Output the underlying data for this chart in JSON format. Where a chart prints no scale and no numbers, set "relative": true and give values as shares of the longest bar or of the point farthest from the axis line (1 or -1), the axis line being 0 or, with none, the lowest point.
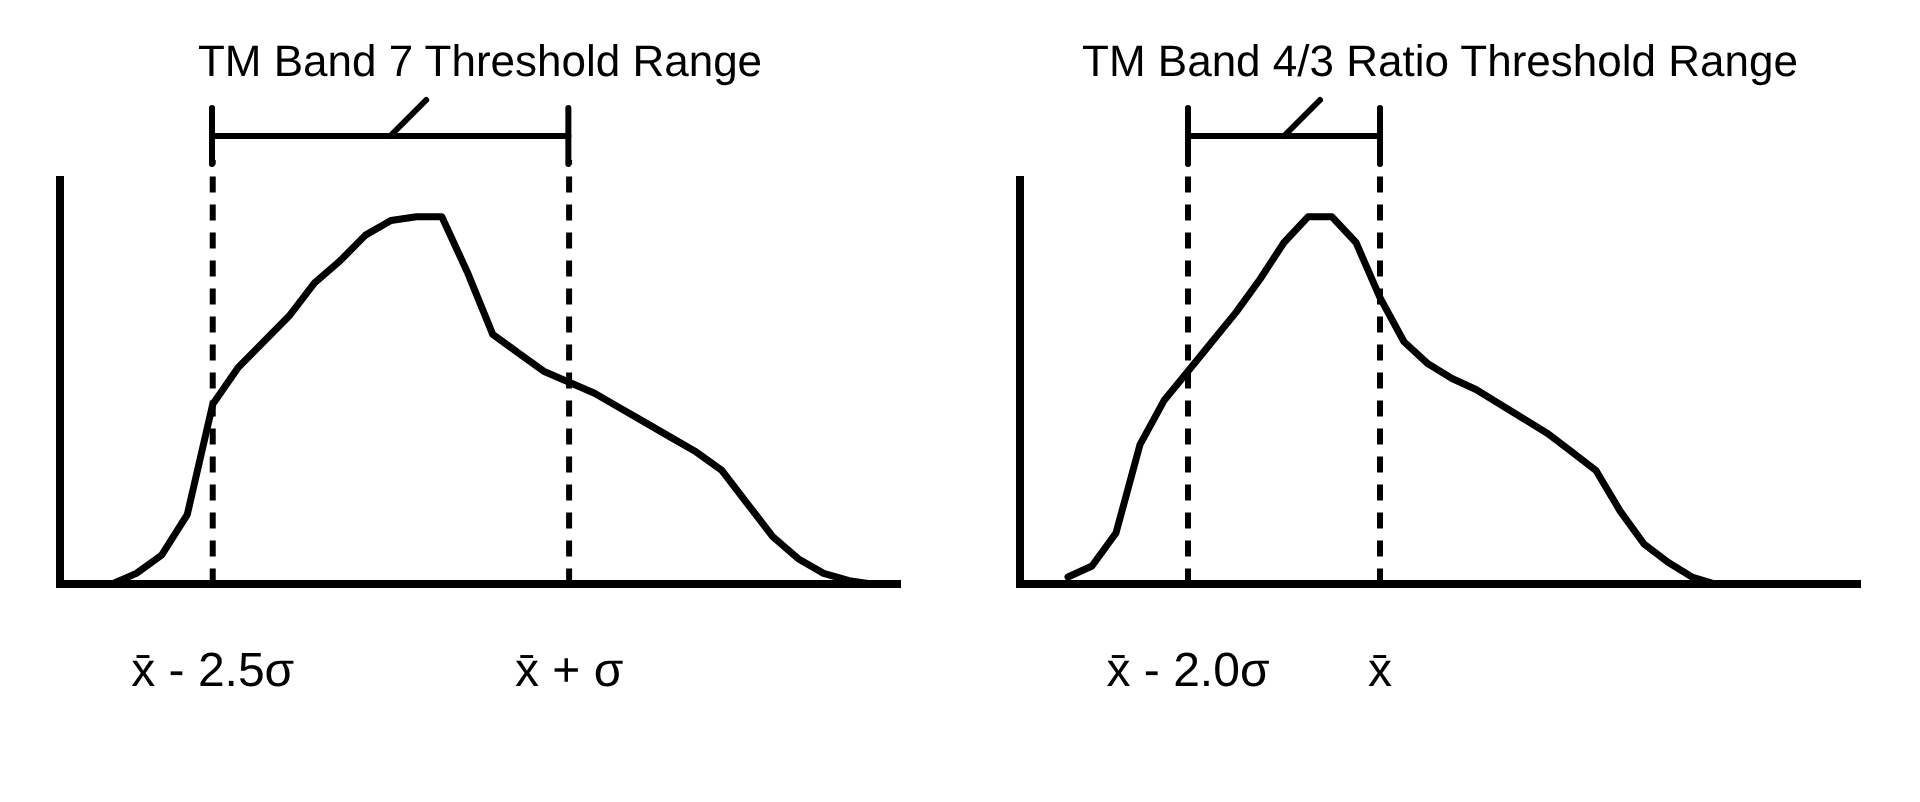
{
  "chart_data": [
    {
      "type": "line",
      "relative": true,
      "color": "#000000",
      "marker": "none",
      "line_style": "solid",
      "grid": false,
      "legend": false,
      "tick_labels": "x",
      "annotations": [
        "TM Band 7 Threshold Range"
      ],
      "categories": [
        null,
        null,
        null,
        null,
        null,
        null,
        "x̄ - 2.5σ",
        null,
        null,
        null,
        null,
        null,
        null,
        null,
        null,
        null,
        null,
        null,
        null,
        null,
        "x̄ + σ",
        null,
        null,
        null,
        null,
        null,
        null,
        null,
        null,
        null,
        null,
        null,
        null,
        null
      ],
      "values": [
        null,
        null,
        0,
        0.03,
        0.08,
        0.19,
        0.49,
        0.59,
        0.66,
        0.73,
        0.82,
        0.88,
        0.95,
        0.99,
        1,
        1,
        0.85,
        0.68,
        0.63,
        0.58,
        0.55,
        0.52,
        0.48,
        0.44,
        0.4,
        0.36,
        0.31,
        0.22,
        0.13,
        0.07,
        0.03,
        0.01,
        0,
        null
      ],
      "ref_lines": [
        {
          "axis": "x",
          "value": "x̄ - 2.5σ",
          "line_style": "dashed"
        },
        {
          "axis": "x",
          "value": "x̄ + σ",
          "line_style": "dashed"
        }
      ]
    },
    {
      "type": "line",
      "relative": true,
      "color": "#000000",
      "marker": "none",
      "line_style": "solid",
      "grid": false,
      "legend": false,
      "tick_labels": "x",
      "annotations": [
        "TM Band 4/3 Ratio Threshold Range"
      ],
      "categories": [
        null,
        null,
        null,
        null,
        null,
        null,
        null,
        "x̄ - 2.0σ",
        null,
        null,
        null,
        null,
        null,
        null,
        null,
        "x̄",
        null,
        null,
        null,
        null,
        null,
        null,
        null,
        null,
        null,
        null,
        null,
        null,
        null,
        null,
        null,
        null,
        null,
        null,
        null,
        null
      ],
      "values": [
        null,
        null,
        0.02,
        0.05,
        0.14,
        0.38,
        0.5,
        0.58,
        0.66,
        0.74,
        0.83,
        0.93,
        1,
        1,
        0.93,
        0.78,
        0.66,
        0.6,
        0.56,
        0.53,
        0.49,
        0.45,
        0.41,
        0.36,
        0.31,
        0.2,
        0.11,
        0.06,
        0.02,
        0,
        null,
        null,
        null,
        null,
        null,
        null
      ],
      "ref_lines": [
        {
          "axis": "x",
          "value": "x̄ - 2.0σ",
          "line_style": "dashed"
        },
        {
          "axis": "x",
          "value": "x̄",
          "line_style": "dashed"
        }
      ]
    }
  ]
}
